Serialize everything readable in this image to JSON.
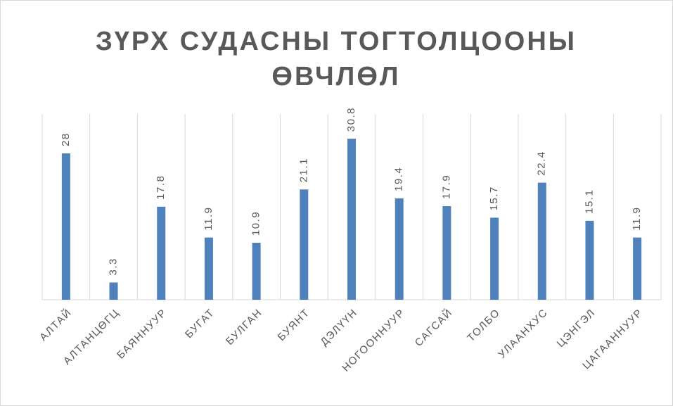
{
  "chart_data": {
    "type": "bar",
    "title": "ЗҮРХ СУДАСНЫ ТОГТОЛЦООНЫ ӨВЧЛӨЛ",
    "categories": [
      "АЛТАЙ",
      "АЛТАНЦӨГЦ",
      "БАЯННУУР",
      "БУГАТ",
      "БУЛГАН",
      "БУЯНТ",
      "ДЭЛҮҮН",
      "НОГООННУУР",
      "САГСАЙ",
      "ТОЛБО",
      "УЛААНХУС",
      "ЦЭНГЭЛ",
      "ЦАГААННУУР"
    ],
    "values": [
      28,
      3.3,
      17.8,
      11.9,
      10.9,
      21.1,
      30.8,
      19.4,
      17.9,
      15.7,
      22.4,
      15.1,
      11.9
    ],
    "color": "#4f81bd",
    "ylim": [
      0,
      35
    ]
  }
}
